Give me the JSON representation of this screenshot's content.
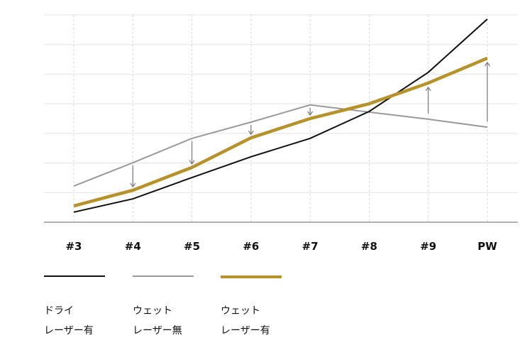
{
  "chart_data": {
    "type": "line",
    "title": "",
    "xlabel": "",
    "ylabel": "",
    "categories": [
      "#3",
      "#4",
      "#5",
      "#6",
      "#7",
      "#8",
      "#9",
      "PW"
    ],
    "ylim": [
      0,
      7
    ],
    "grid": {
      "horizontal": true,
      "vertical_dashed": true
    },
    "y_ticks_labeled": false,
    "legend_position": "bottom",
    "series": [
      {
        "name": "ドライ レーザー有",
        "line1": "ドライ",
        "line2": "レーザー有",
        "color": "#111111",
        "width": 2,
        "values": [
          0.34,
          0.79,
          1.51,
          2.21,
          2.83,
          3.74,
          5.06,
          6.86
        ]
      },
      {
        "name": "ウェット レーザー無",
        "line1": "ウェット",
        "line2": "レーザー無",
        "color": "#9a9a9a",
        "width": 2,
        "values": [
          1.22,
          2.01,
          2.83,
          3.38,
          3.96,
          3.72,
          3.48,
          3.21
        ]
      },
      {
        "name": "ウェット レーザー有",
        "line1": "ウェット",
        "line2": "レーザー有",
        "color": "#b5922a",
        "width": 4.5,
        "values": [
          0.55,
          1.08,
          1.85,
          2.85,
          3.5,
          4.0,
          4.7,
          5.54
        ]
      }
    ],
    "annotations": [
      {
        "type": "arrow",
        "category": "#4",
        "direction": "down",
        "from": "ウェット レーザー無",
        "to": "ウェット レーザー有"
      },
      {
        "type": "arrow",
        "category": "#5",
        "direction": "down",
        "from": "ウェット レーザー無",
        "to": "ウェット レーザー有"
      },
      {
        "type": "arrow",
        "category": "#6",
        "direction": "down",
        "from": "ウェット レーザー無",
        "to": "ウェット レーザー有"
      },
      {
        "type": "arrow",
        "category": "#7",
        "direction": "down",
        "from": "ウェット レーザー無",
        "to": "ウェット レーザー有"
      },
      {
        "type": "arrow",
        "category": "#9",
        "direction": "up",
        "from": "ウェット レーザー無",
        "to": "ウェット レーザー有"
      },
      {
        "type": "arrow",
        "category": "PW",
        "direction": "up",
        "from": "ウェット レーザー無",
        "to": "ウェット レーザー有"
      }
    ]
  },
  "legend": [
    {
      "line1": "ドライ",
      "line2": "レーザー有",
      "color": "#111111"
    },
    {
      "line1": "ウェット",
      "line2": "レーザー無",
      "color": "#9a9a9a"
    },
    {
      "line1": "ウェット",
      "line2": "レーザー有",
      "color": "#b5922a"
    }
  ],
  "x_labels": [
    "#3",
    "#4",
    "#5",
    "#6",
    "#7",
    "#8",
    "#9",
    "PW"
  ],
  "colors": {
    "grid": "#e3e3e3",
    "axis": "#999999",
    "arrow": "#777777"
  }
}
